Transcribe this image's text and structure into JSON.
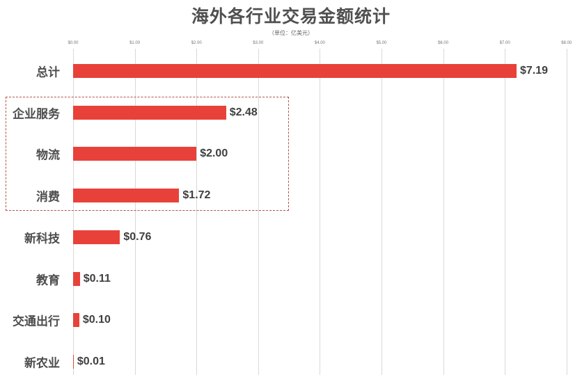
{
  "chart_data": {
    "type": "bar",
    "orientation": "horizontal",
    "title": "海外各行业交易金额统计",
    "subtitle": "（单位：亿美元）",
    "xlabel": "",
    "ylabel": "",
    "xlim": [
      0,
      8
    ],
    "x_ticks": [
      "$0.00",
      "$1.00",
      "$2.00",
      "$3.00",
      "$4.00",
      "$5.00",
      "$6.00",
      "$7.00",
      "$8.00"
    ],
    "grid": true,
    "legend": null,
    "categories": [
      "总计",
      "企业服务",
      "物流",
      "消费",
      "新科技",
      "教育",
      "交通出行",
      "新农业"
    ],
    "values": [
      7.19,
      2.48,
      2.0,
      1.72,
      0.76,
      0.11,
      0.1,
      0.01
    ],
    "data_labels": [
      "$7.19",
      "$2.48",
      "$2.00",
      "$1.72",
      "$0.76",
      "$0.11",
      "$0.10",
      "$0.01"
    ],
    "bar_color": "#e8413a",
    "annotation": {
      "type": "dashed-box",
      "covers": [
        "企业服务",
        "物流",
        "消费"
      ],
      "color": "#b5504a"
    }
  }
}
